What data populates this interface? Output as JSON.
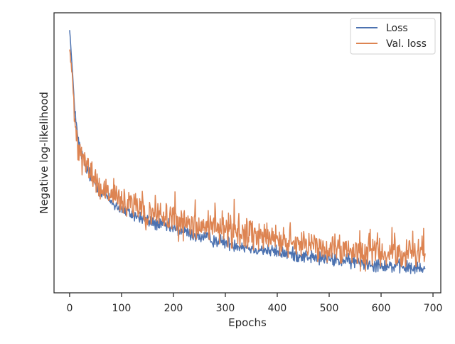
{
  "chart_data": {
    "type": "line",
    "title": "",
    "xlabel": "Epochs",
    "ylabel": "Negative log-likelihood",
    "xlim": [
      -30,
      715
    ],
    "ylim": [
      0.0,
      1.0
    ],
    "xticks": [
      0,
      100,
      200,
      300,
      400,
      500,
      600,
      700
    ],
    "xtick_labels": [
      "0",
      "100",
      "200",
      "300",
      "400",
      "500",
      "600",
      "700"
    ],
    "yticks_shown": false,
    "grid": false,
    "legend": {
      "placement": "top-right"
    },
    "colors": {
      "Loss": "#4c72b0",
      "Val. loss": "#dd8452",
      "axes": "#262626"
    },
    "series": [
      {
        "name": "Loss",
        "trend": {
          "x": [
            0,
            5,
            10,
            15,
            20,
            30,
            40,
            50,
            60,
            70,
            80,
            90,
            100,
            120,
            140,
            160,
            180,
            200,
            225,
            250,
            275,
            300,
            325,
            350,
            375,
            400,
            425,
            450,
            475,
            500,
            525,
            550,
            575,
            600,
            625,
            650,
            675,
            685
          ],
          "y": [
            0.945,
            0.8,
            0.66,
            0.56,
            0.515,
            0.455,
            0.415,
            0.39,
            0.365,
            0.345,
            0.325,
            0.31,
            0.3,
            0.28,
            0.265,
            0.25,
            0.24,
            0.23,
            0.215,
            0.2,
            0.19,
            0.18,
            0.17,
            0.16,
            0.153,
            0.145,
            0.138,
            0.132,
            0.125,
            0.12,
            0.114,
            0.11,
            0.105,
            0.1,
            0.095,
            0.09,
            0.085,
            0.083
          ]
        },
        "noise": 0.012,
        "n_points": 686
      },
      {
        "name": "Val. loss",
        "trend": {
          "x": [
            0,
            5,
            10,
            15,
            20,
            30,
            40,
            50,
            60,
            70,
            80,
            90,
            100,
            120,
            140,
            160,
            180,
            200,
            225,
            250,
            275,
            300,
            325,
            350,
            375,
            400,
            425,
            450,
            475,
            500,
            525,
            550,
            575,
            600,
            625,
            650,
            675,
            685
          ],
          "y": [
            0.875,
            0.77,
            0.64,
            0.55,
            0.51,
            0.46,
            0.425,
            0.4,
            0.38,
            0.36,
            0.345,
            0.33,
            0.32,
            0.305,
            0.29,
            0.278,
            0.268,
            0.258,
            0.25,
            0.24,
            0.232,
            0.225,
            0.215,
            0.205,
            0.197,
            0.19,
            0.182,
            0.175,
            0.168,
            0.162,
            0.156,
            0.152,
            0.148,
            0.145,
            0.142,
            0.14,
            0.138,
            0.137
          ]
        },
        "noise": 0.028,
        "n_points": 686
      }
    ]
  }
}
